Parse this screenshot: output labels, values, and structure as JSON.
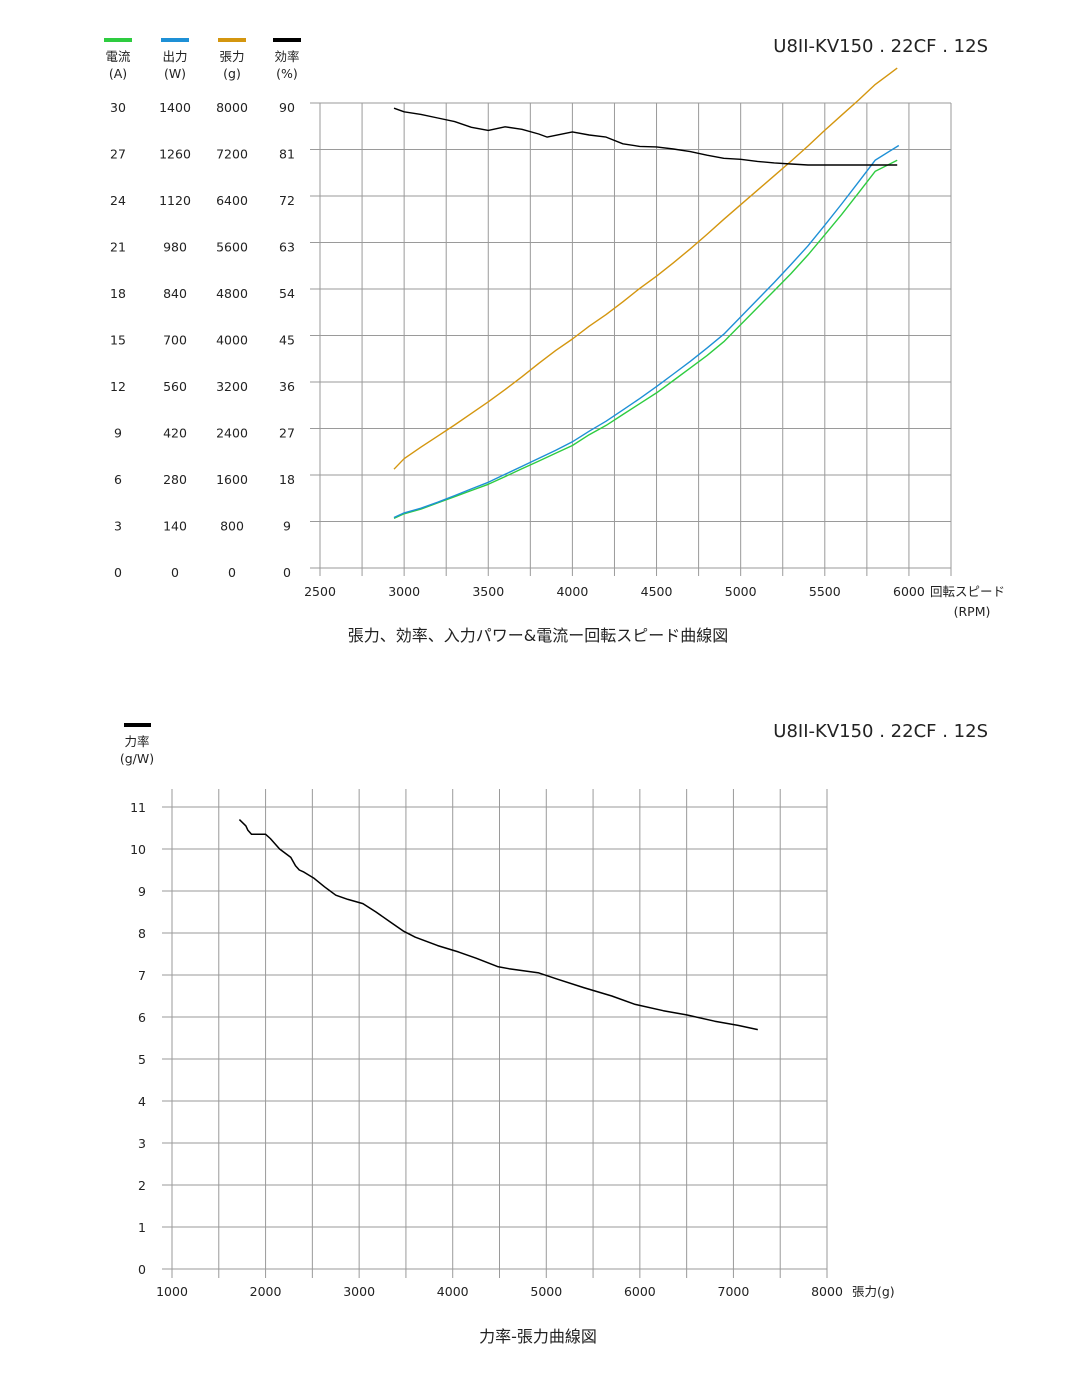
{
  "chart_data": [
    {
      "type": "line",
      "model": "U8II-KV150 . 22CF . 12S",
      "title": "張力、効率、入力パワー&電流ー回転スピード曲線図",
      "xlabel": "回転スピード",
      "xunit": "(RPM)",
      "xlim": [
        2500,
        6250
      ],
      "xticks": [
        2500,
        3000,
        3500,
        4000,
        4500,
        5000,
        5500,
        6000
      ],
      "grid": true,
      "axes": [
        {
          "name": "電流",
          "unit": "(A)",
          "color": "#2ecc40",
          "ticks": [
            0,
            3,
            6,
            9,
            12,
            15,
            18,
            21,
            24,
            27,
            30
          ],
          "lim": [
            0,
            30
          ]
        },
        {
          "name": "出力",
          "unit": "(W)",
          "color": "#1e90d6",
          "ticks": [
            0,
            140,
            280,
            420,
            560,
            700,
            840,
            980,
            1120,
            1260,
            1400
          ],
          "lim": [
            0,
            1400
          ]
        },
        {
          "name": "張力",
          "unit": "(g)",
          "color": "#d4960f",
          "ticks": [
            0,
            800,
            1600,
            2400,
            3200,
            4000,
            4800,
            5600,
            6400,
            7200,
            8000
          ],
          "lim": [
            0,
            8000
          ]
        },
        {
          "name": "効率",
          "unit": "(%)",
          "color": "#000000",
          "ticks": [
            0,
            9,
            18,
            27,
            36,
            45,
            54,
            63,
            72,
            81,
            90
          ],
          "lim": [
            0,
            90
          ]
        }
      ],
      "series": [
        {
          "name": "電流",
          "axis": 0,
          "color": "#2ecc40",
          "x": [
            2940,
            3000,
            3100,
            3200,
            3300,
            3400,
            3500,
            3600,
            3700,
            3800,
            3900,
            4000,
            4100,
            4200,
            4300,
            4400,
            4500,
            4600,
            4700,
            4800,
            4900,
            5000,
            5100,
            5200,
            5300,
            5400,
            5500,
            5600,
            5700,
            5800,
            5930
          ],
          "y": [
            3.2,
            3.5,
            3.8,
            4.2,
            4.6,
            5.0,
            5.4,
            5.9,
            6.4,
            6.9,
            7.4,
            7.9,
            8.6,
            9.2,
            9.9,
            10.6,
            11.3,
            12.1,
            12.9,
            13.7,
            14.6,
            15.7,
            16.8,
            17.9,
            19.0,
            20.2,
            21.5,
            22.8,
            24.2,
            25.6,
            26.3
          ]
        },
        {
          "name": "出力",
          "axis": 1,
          "color": "#1e90d6",
          "x": [
            2940,
            3000,
            3100,
            3200,
            3300,
            3400,
            3500,
            3600,
            3700,
            3800,
            3900,
            4000,
            4100,
            4200,
            4300,
            4400,
            4500,
            4600,
            4700,
            4800,
            4900,
            5000,
            5100,
            5200,
            5300,
            5400,
            5500,
            5600,
            5700,
            5800,
            5940
          ],
          "y": [
            152,
            166,
            180,
            198,
            218,
            238,
            258,
            282,
            306,
            330,
            354,
            380,
            412,
            442,
            476,
            510,
            546,
            584,
            622,
            662,
            704,
            756,
            808,
            860,
            914,
            970,
            1032,
            1096,
            1162,
            1228,
            1272
          ]
        },
        {
          "name": "張力",
          "axis": 2,
          "color": "#d4960f",
          "x": [
            2940,
            3000,
            3100,
            3200,
            3300,
            3400,
            3500,
            3600,
            3700,
            3800,
            3900,
            4000,
            4100,
            4200,
            4300,
            4400,
            4500,
            4600,
            4700,
            4800,
            4900,
            5000,
            5100,
            5200,
            5300,
            5400,
            5500,
            5600,
            5700,
            5800,
            5930
          ],
          "y": [
            1700,
            1880,
            2080,
            2270,
            2460,
            2660,
            2860,
            3070,
            3290,
            3520,
            3740,
            3940,
            4160,
            4360,
            4580,
            4810,
            5020,
            5250,
            5490,
            5740,
            6000,
            6250,
            6500,
            6750,
            7000,
            7260,
            7530,
            7790,
            8050,
            8320,
            8600
          ]
        },
        {
          "name": "効率",
          "axis": 3,
          "color": "#000000",
          "x": [
            2940,
            3000,
            3100,
            3200,
            3300,
            3400,
            3500,
            3600,
            3700,
            3800,
            3850,
            4000,
            4100,
            4200,
            4300,
            4400,
            4500,
            4600,
            4700,
            4800,
            4900,
            5000,
            5100,
            5200,
            5300,
            5400,
            5500,
            5600,
            5700,
            5800,
            5930
          ],
          "y": [
            89.0,
            88.3,
            87.8,
            87.1,
            86.4,
            85.3,
            84.7,
            85.4,
            84.9,
            84.0,
            83.4,
            84.4,
            83.8,
            83.4,
            82.1,
            81.6,
            81.5,
            81.1,
            80.6,
            79.9,
            79.3,
            79.1,
            78.7,
            78.4,
            78.2,
            78.0,
            78.0,
            78.0,
            78.0,
            78.0,
            78.0
          ]
        }
      ]
    },
    {
      "type": "line",
      "model": "U8II-KV150 . 22CF . 12S",
      "title": "力率-張力曲線図",
      "xlabel": "張力(g)",
      "ylabel_name": "力率",
      "ylabel_unit": "(g/W)",
      "xlim": [
        1000,
        8000
      ],
      "xticks": [
        1000,
        2000,
        3000,
        4000,
        5000,
        6000,
        7000,
        8000
      ],
      "xgrid_step": 500,
      "ylim": [
        0,
        11
      ],
      "yticks": [
        0,
        1,
        2,
        3,
        4,
        5,
        6,
        7,
        8,
        9,
        10,
        11
      ],
      "grid": true,
      "series": [
        {
          "name": "力率",
          "color": "#000000",
          "x": [
            1720,
            1790,
            1810,
            1850,
            1890,
            2000,
            2050,
            2150,
            2270,
            2320,
            2360,
            2410,
            2520,
            2630,
            2750,
            2880,
            3040,
            3180,
            3340,
            3470,
            3600,
            3840,
            4060,
            4250,
            4480,
            4600,
            4920,
            5120,
            5400,
            5700,
            5950,
            6250,
            6500,
            6800,
            7050,
            7260
          ],
          "y": [
            10.7,
            10.55,
            10.45,
            10.35,
            10.35,
            10.35,
            10.25,
            10.0,
            9.8,
            9.6,
            9.5,
            9.45,
            9.3,
            9.1,
            8.9,
            8.8,
            8.7,
            8.5,
            8.25,
            8.05,
            7.9,
            7.7,
            7.55,
            7.4,
            7.2,
            7.15,
            7.05,
            6.9,
            6.7,
            6.5,
            6.3,
            6.15,
            6.05,
            5.9,
            5.8,
            5.7
          ]
        }
      ]
    }
  ]
}
